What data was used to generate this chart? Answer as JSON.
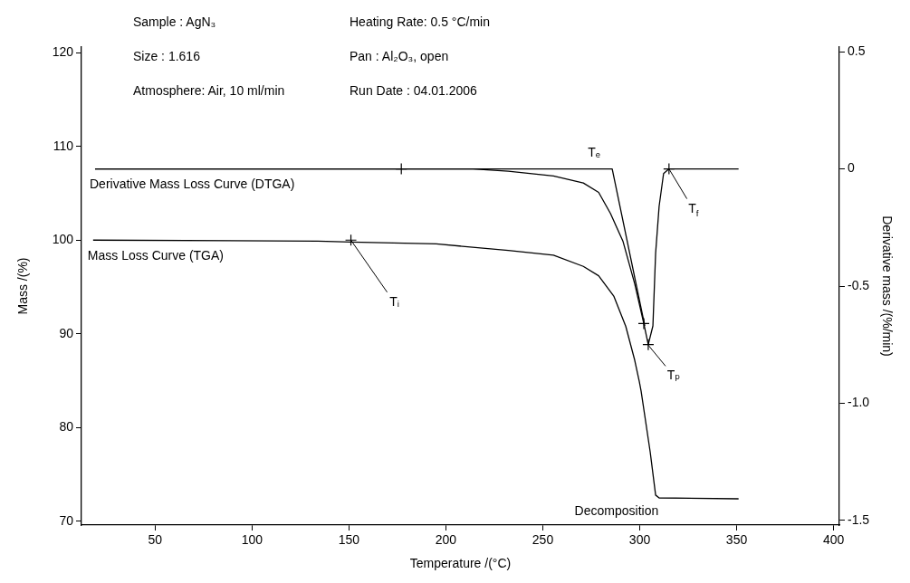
{
  "chart_data": {
    "type": "line",
    "xlabel": "Temperature /(°C)",
    "ylabel": "Mass /(%)",
    "y2label": "Derivative mass /(%/min)",
    "xlim": [
      12,
      403
    ],
    "xticks": [
      50,
      100,
      150,
      200,
      250,
      300,
      350,
      400
    ],
    "ylim": [
      69.6,
      120.6
    ],
    "yticks": [
      70,
      80,
      90,
      100,
      110,
      120
    ],
    "y2lim": [
      -1.52,
      0.52
    ],
    "y2ticks": [
      {
        "value": -1.5,
        "label": "-1.5"
      },
      {
        "value": -1,
        "label": "-1.0"
      },
      {
        "value": -0.5,
        "label": "-0.5"
      },
      0,
      0.5
    ],
    "grid": false,
    "legend": false,
    "marker": "none",
    "line_style": "solid",
    "series": [
      {
        "name": "Derivative Mass Loss Curve (DTGA)",
        "axis": "y2",
        "color": "#000000",
        "x": [
          19,
          100,
          176,
          214,
          232.2,
          255.5,
          270.9,
          278.8,
          284.9,
          291.4,
          297.4,
          302.1,
          304.4,
          306.8,
          308.2,
          310,
          312.3,
          315.1,
          330,
          351
        ],
        "values": [
          0,
          0,
          0,
          0,
          -0.01,
          -0.03,
          -0.06,
          -0.1,
          -0.19,
          -0.31,
          -0.49,
          -0.66,
          -0.75,
          -0.67,
          -0.36,
          -0.16,
          -0.02,
          0,
          0,
          0
        ]
      },
      {
        "name": "Mass Loss Curve (TGA)",
        "axis": "y",
        "color": "#000000",
        "x": [
          18,
          134,
          151,
          195,
          232.2,
          255.5,
          270.9,
          278.8,
          286.7,
          292.8,
          297.4,
          299.8,
          300.7,
          305.4,
          308.2,
          310,
          351
        ],
        "values": [
          100,
          99.9,
          99.8,
          99.6,
          98.9,
          98.4,
          97.2,
          96.2,
          94,
          90.8,
          87.2,
          84.9,
          83.9,
          77.4,
          72.8,
          72.5,
          72.4
        ]
      },
      {
        "axis": "y2",
        "color": "#000000",
        "x": [
          19,
          285.8,
          302.6
        ],
        "values": [
          0,
          0,
          -0.67
        ]
      },
      {
        "type": "scatter",
        "axis": "y2",
        "marker": "cross",
        "color": "#000000",
        "x": [
          177,
          302.1,
          304.4,
          315.1
        ],
        "values": [
          0,
          -0.66,
          -0.75,
          0
        ]
      },
      {
        "type": "scatter",
        "axis": "y",
        "marker": "cross",
        "color": "#000000",
        "x": [
          151
        ],
        "values": [
          100
        ]
      }
    ],
    "annotations": [
      "Sample : AgN₃",
      "Heating Rate: 0.5 °C/min",
      "Size : 1.616",
      "Pan : Al₂O₃, open",
      "Atmosphere: Air, 10 ml/min",
      "Run Date : 04.01.2006",
      {
        "text": "Tᵢ",
        "x": 151,
        "y": 100
      },
      {
        "text": "Tₑ",
        "x": 285.8,
        "y": 107.6
      },
      {
        "text": "Tₚ",
        "x": 304.4,
        "y": 88.8
      },
      {
        "text": "T$_{f}$",
        "x": 315.1,
        "y": 107.6
      },
      {
        "text": "Decomposition",
        "x": 310,
        "y": 72.5
      }
    ]
  }
}
